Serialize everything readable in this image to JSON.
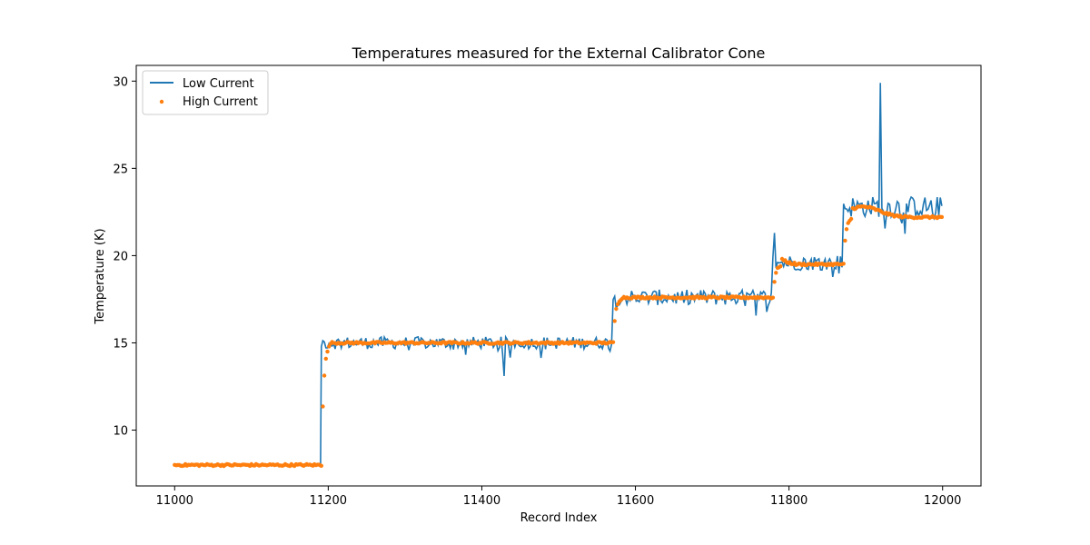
{
  "chart_data": {
    "type": "line",
    "title": "Temperatures measured for the External Calibrator Cone",
    "xlabel": "Record Index",
    "ylabel": "Temperature (K)",
    "xlim": [
      10950,
      12050
    ],
    "ylim": [
      6.8,
      30.9
    ],
    "x_ticks": [
      11000,
      11200,
      11400,
      11600,
      11800,
      12000
    ],
    "y_ticks": [
      10,
      15,
      20,
      25,
      30
    ],
    "legend_position": "upper-left",
    "series": [
      {
        "name": "Low Current",
        "style": "line",
        "color": "#1f77b4",
        "segments": [
          {
            "x_start": 11000,
            "x_end": 11190,
            "level": 8.0,
            "noise": 0.05
          },
          {
            "x_start": 11191,
            "x_end": 11570,
            "level": 15.0,
            "noise": 0.35
          },
          {
            "x_start": 11571,
            "x_end": 11778,
            "level": 17.6,
            "noise": 0.45
          },
          {
            "x_start": 11779,
            "x_end": 11870,
            "level": 19.6,
            "noise": 0.45
          },
          {
            "x_start": 11871,
            "x_end": 12000,
            "level": 22.8,
            "noise": 0.6
          }
        ],
        "spikes": [
          {
            "x": 11430,
            "value": 13.1
          },
          {
            "x": 11782,
            "value": 21.3
          },
          {
            "x": 11920,
            "value": 29.9
          }
        ]
      },
      {
        "name": "High Current",
        "style": "scatter",
        "color": "#ff7f0e",
        "segments": [
          {
            "x_start": 11000,
            "x_end": 11190,
            "level": 8.0
          },
          {
            "x_start": 11191,
            "x_end": 11570,
            "level": 15.0
          },
          {
            "x_start": 11571,
            "x_end": 11778,
            "level": 17.6
          },
          {
            "x_start": 11779,
            "x_end": 11870,
            "level": 19.5
          },
          {
            "x_start": 11871,
            "x_end": 12000,
            "level": 22.2
          }
        ]
      }
    ]
  }
}
